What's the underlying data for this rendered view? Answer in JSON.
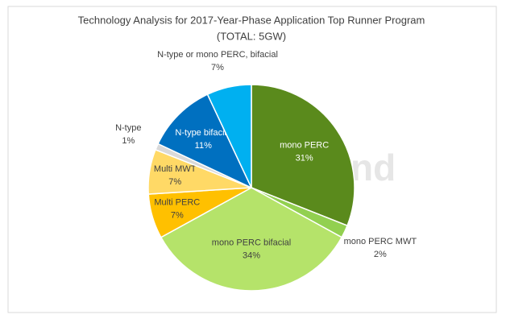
{
  "chart_data": {
    "type": "pie",
    "title": "Technology Analysis for 2017-Year-Phase Application Top Runner Program",
    "subtitle": "(TOTAL: 5GW)",
    "watermark": "EnergyTrend",
    "categories": [
      "mono PERC",
      "mono PERC MWT",
      "mono PERC bifacial",
      "Multi PERC",
      "Multi MWT",
      "N-type",
      "N-type bifacial",
      "N-type or mono PERC, bifacial"
    ],
    "values": [
      31,
      2,
      34,
      7,
      7,
      1,
      11,
      7
    ],
    "value_labels": [
      "31%",
      "2%",
      "34%",
      "7%",
      "7%",
      "1%",
      "11%",
      "7%"
    ],
    "colors": [
      "#5a8a1c",
      "#92d050",
      "#b5e36a",
      "#ffc000",
      "#ffd966",
      "#d9d9d9",
      "#0070c0",
      "#00b0f0"
    ]
  }
}
